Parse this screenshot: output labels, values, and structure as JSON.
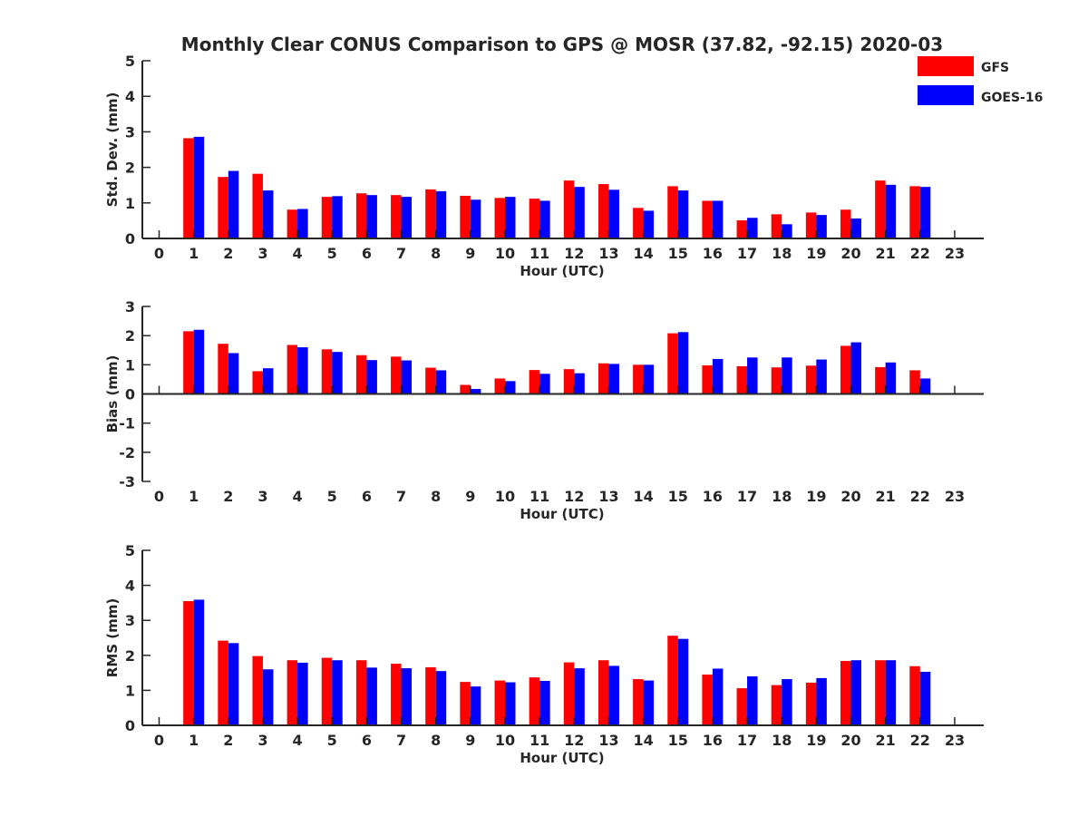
{
  "title": "Monthly Clear CONUS Comparison to GPS @ MOSR (37.82, -92.15) 2020-03",
  "legend": {
    "placement": "top-right",
    "items": [
      {
        "name": "GFS",
        "color": "#ff0000"
      },
      {
        "name": "GOES-16",
        "color": "#0000ff"
      }
    ]
  },
  "chart_data": [
    {
      "type": "bar",
      "xlabel": "Hour (UTC)",
      "ylabel": "Std. Dev. (mm)",
      "ylim": [
        0,
        5
      ],
      "yticks": [
        0,
        1,
        2,
        3,
        4,
        5
      ],
      "x": [
        0,
        1,
        2,
        3,
        4,
        5,
        6,
        7,
        8,
        9,
        10,
        11,
        12,
        13,
        14,
        15,
        16,
        17,
        18,
        19,
        20,
        21,
        22,
        23
      ],
      "grid": false,
      "series": [
        {
          "name": "GFS",
          "color": "#ff0000",
          "values": [
            null,
            2.82,
            1.73,
            1.82,
            0.81,
            1.17,
            1.27,
            1.22,
            1.38,
            1.2,
            1.14,
            1.12,
            1.63,
            1.53,
            0.86,
            1.47,
            1.06,
            0.51,
            0.68,
            0.73,
            0.81,
            1.63,
            1.47,
            null
          ]
        },
        {
          "name": "GOES-16",
          "color": "#0000ff",
          "values": [
            null,
            2.86,
            1.9,
            1.35,
            0.83,
            1.19,
            1.22,
            1.17,
            1.33,
            1.09,
            1.17,
            1.06,
            1.45,
            1.37,
            0.78,
            1.35,
            1.06,
            0.58,
            0.4,
            0.66,
            0.56,
            1.51,
            1.45,
            null
          ]
        }
      ]
    },
    {
      "type": "bar",
      "xlabel": "Hour (UTC)",
      "ylabel": "Bias (mm)",
      "ylim": [
        -3,
        3
      ],
      "yticks": [
        -3,
        -2,
        -1,
        0,
        1,
        2,
        3
      ],
      "x": [
        0,
        1,
        2,
        3,
        4,
        5,
        6,
        7,
        8,
        9,
        10,
        11,
        12,
        13,
        14,
        15,
        16,
        17,
        18,
        19,
        20,
        21,
        22,
        23
      ],
      "grid": false,
      "series": [
        {
          "name": "GFS",
          "color": "#ff0000",
          "values": [
            null,
            2.15,
            1.72,
            0.78,
            1.68,
            1.53,
            1.33,
            1.28,
            0.9,
            0.31,
            0.53,
            0.82,
            0.85,
            1.05,
            1.0,
            2.08,
            0.98,
            0.95,
            0.91,
            0.97,
            1.65,
            0.92,
            0.81,
            null
          ]
        },
        {
          "name": "GOES-16",
          "color": "#0000ff",
          "values": [
            null,
            2.2,
            1.4,
            0.88,
            1.6,
            1.44,
            1.16,
            1.15,
            0.81,
            0.17,
            0.44,
            0.69,
            0.71,
            1.03,
            1.0,
            2.12,
            1.2,
            1.25,
            1.25,
            1.18,
            1.77,
            1.08,
            0.53,
            null
          ]
        }
      ]
    },
    {
      "type": "bar",
      "xlabel": "Hour (UTC)",
      "ylabel": "RMS (mm)",
      "ylim": [
        0,
        5
      ],
      "yticks": [
        0,
        1,
        2,
        3,
        4,
        5
      ],
      "x": [
        0,
        1,
        2,
        3,
        4,
        5,
        6,
        7,
        8,
        9,
        10,
        11,
        12,
        13,
        14,
        15,
        16,
        17,
        18,
        19,
        20,
        21,
        22,
        23
      ],
      "grid": false,
      "series": [
        {
          "name": "GFS",
          "color": "#ff0000",
          "values": [
            null,
            3.55,
            2.42,
            1.98,
            1.86,
            1.93,
            1.86,
            1.76,
            1.66,
            1.24,
            1.28,
            1.37,
            1.8,
            1.86,
            1.32,
            2.56,
            1.45,
            1.06,
            1.15,
            1.22,
            1.84,
            1.86,
            1.69,
            null
          ]
        },
        {
          "name": "GOES-16",
          "color": "#0000ff",
          "values": [
            null,
            3.59,
            2.35,
            1.6,
            1.79,
            1.86,
            1.65,
            1.63,
            1.55,
            1.11,
            1.23,
            1.27,
            1.63,
            1.7,
            1.28,
            2.47,
            1.62,
            1.4,
            1.32,
            1.35,
            1.86,
            1.86,
            1.53,
            null
          ]
        }
      ]
    }
  ]
}
